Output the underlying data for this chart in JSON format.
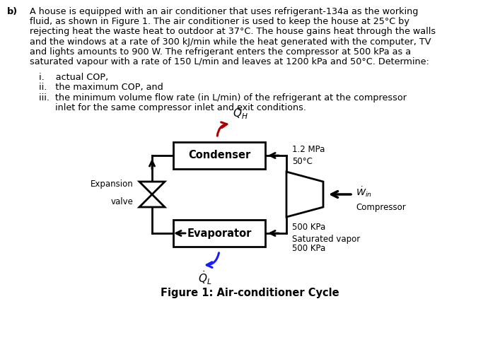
{
  "title_b": "b)",
  "para_line1": "A house is equipped with an air conditioner that uses refrigerant-134a as the working",
  "para_line2": "fluid, as shown in Figure 1. The air conditioner is used to keep the house at 25°C by",
  "para_line3": "rejecting heat the waste heat to outdoor at 37°C. The house gains heat through the walls",
  "para_line4": "and the windows at a rate of 300 kJ/min while the heat generated with the computer, TV",
  "para_line5": "and lights amounts to 900 W. The refrigerant enters the compressor at 500 kPa as a",
  "para_line6": "saturated vapour with a rate of 150 L/min and leaves at 1200 kPa and 50°C. Determine:",
  "item1": "i.    actual COP,",
  "item2": "ii.   the maximum COP, and",
  "item3a": "iii.  the minimum volume flow rate (in L/min) of the refrigerant at the compressor",
  "item3b": "      inlet for the same compressor inlet and exit conditions.",
  "figure_caption": "Figure 1: Air-conditioner Cycle",
  "condenser_label": "Condenser",
  "evaporator_label": "Evaporator",
  "compressor_label": "Compressor",
  "expansion_valve_label1": "Expansion",
  "expansion_valve_label2": "valve",
  "label_12MPa_line1": "1.2 MPa",
  "label_12MPa_line2": "50°C",
  "label_500kPa_line1": "500 KPa",
  "label_500kPa_line2": "Saturated vapor",
  "label_500kPa_line3": "500 KPa",
  "label_QH": "$\\dot{Q}_H$",
  "label_QL": "$\\dot{Q}_L$",
  "label_Win_math": "$\\dot{W}_{in}$",
  "bg_color": "#ffffff",
  "text_color": "#000000",
  "ql_arrow_color": "#1a1aff",
  "qh_arrow_color": "#aa0000",
  "lw": 2.0,
  "font_size_para": 9.2,
  "font_size_items": 9.2,
  "font_size_box": 10.5,
  "font_size_labels": 8.5,
  "font_size_caption": 10.5
}
